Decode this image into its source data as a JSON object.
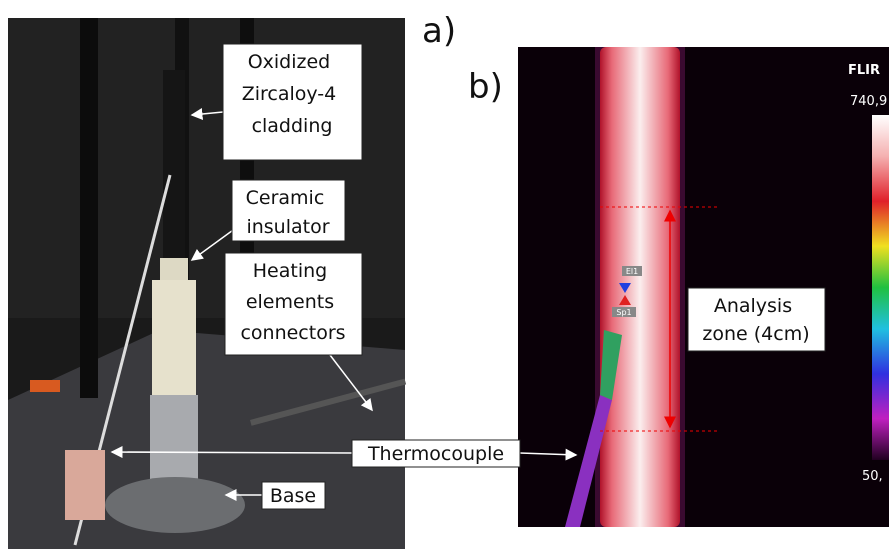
{
  "panel_labels": [
    "a)",
    "b)"
  ],
  "callouts": {
    "cladding": [
      "Oxidized",
      "Zircaloy-4",
      "cladding"
    ],
    "insulator": [
      "Ceramic",
      "insulator"
    ],
    "connectors": [
      "Heating",
      "elements",
      "connectors"
    ],
    "thermocouple": "Thermocouple",
    "base": "Base",
    "analysis_zone": [
      "Analysis",
      "zone (4cm)"
    ]
  },
  "thermal": {
    "brand": "FLIR",
    "scale_max": "740,9",
    "scale_min": "50,",
    "markers": [
      "El1",
      "Sp1"
    ]
  }
}
